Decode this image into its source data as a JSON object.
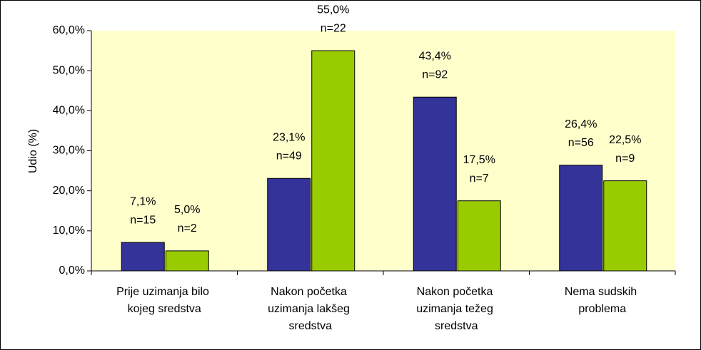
{
  "chart_data": {
    "type": "bar",
    "y_label": "Udio (%)",
    "categories": [
      "Prije uzimanja bilo kojeg sredstva",
      "Nakon početka uzimanja lakšeg sredstva",
      "Nakon početka uzimanja težeg sredstva",
      "Nema sudskih problema"
    ],
    "series": [
      {
        "color": "#333399",
        "values": [
          7.1,
          23.1,
          43.4,
          26.4
        ],
        "value_labels": [
          "7,1%",
          "23,1%",
          "43,4%",
          "26,4%"
        ],
        "count_labels": [
          "n=15",
          "n=49",
          "n=92",
          "n=56"
        ]
      },
      {
        "color": "#99cc00",
        "values": [
          5.0,
          55.0,
          17.5,
          22.5
        ],
        "value_labels": [
          "5,0%",
          "55,0%",
          "17,5%",
          "22,5%"
        ],
        "count_labels": [
          "n=2",
          "n=22",
          "n=7",
          "n=9"
        ]
      }
    ],
    "ylim": [
      0,
      60
    ],
    "yticks": [
      {
        "value": 0,
        "label": "0,0%"
      },
      {
        "value": 10,
        "label": "10,0%"
      },
      {
        "value": 20,
        "label": "20,0%"
      },
      {
        "value": 30,
        "label": "30,0%"
      },
      {
        "value": 40,
        "label": "40,0%"
      },
      {
        "value": 50,
        "label": "50,0%"
      },
      {
        "value": 60,
        "label": "60,0%"
      }
    ],
    "plot_background": "#ffffcc"
  }
}
